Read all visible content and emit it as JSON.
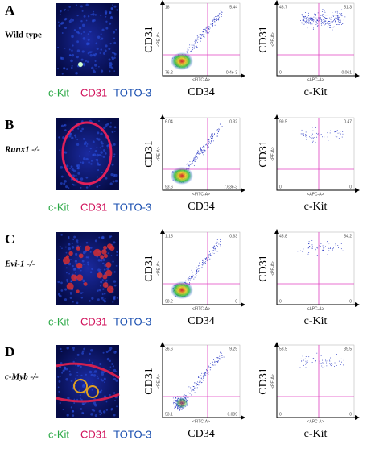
{
  "panels": [
    {
      "letter": "A",
      "genotype": "Wild type",
      "stains": [
        "c-Kit",
        "CD31",
        "TOTO-3"
      ],
      "plots": [
        {
          "y_label": "CD31",
          "x_label": "CD34",
          "y_channel": "<PE-A>",
          "x_channel": "<FITC-A>",
          "quadrants": [
            "18",
            "5.44",
            "76.2",
            "0.4e-3"
          ]
        },
        {
          "y_label": "CD31",
          "x_label": "c-Kit",
          "y_channel": "<PE-A>",
          "x_channel": "<APC-A>",
          "quadrants": [
            "48.7",
            "51.3",
            "0",
            "0.061"
          ]
        }
      ]
    },
    {
      "letter": "B",
      "genotype": "Runx1 -/-",
      "stains": [
        "c-Kit",
        "CD31",
        "TOTO-3"
      ],
      "plots": [
        {
          "y_label": "CD31",
          "x_label": "CD34",
          "y_channel": "<PE-A>",
          "x_channel": "<FITC-A>",
          "quadrants": [
            "6.04",
            "0.32",
            "93.6",
            "7.63e-3"
          ]
        },
        {
          "y_label": "CD31",
          "x_label": "c-Kit",
          "y_channel": "<PE-A>",
          "x_channel": "<APC-A>",
          "quadrants": [
            "99.5",
            "0.47",
            "0",
            "0"
          ]
        }
      ]
    },
    {
      "letter": "C",
      "genotype": "Evi-1 -/-",
      "stains": [
        "c-Kit",
        "CD31",
        "TOTO-3"
      ],
      "plots": [
        {
          "y_label": "CD31",
          "x_label": "CD34",
          "y_channel": "<PE-A>",
          "x_channel": "<FITC-A>",
          "quadrants": [
            "1.15",
            "0.63",
            "98.2",
            "0"
          ]
        },
        {
          "y_label": "CD31",
          "x_label": "c-Kit",
          "y_channel": "<PE-A>",
          "x_channel": "<APC-A>",
          "quadrants": [
            "45.8",
            "54.2",
            "0",
            "0"
          ]
        }
      ]
    },
    {
      "letter": "D",
      "genotype": "c-Myb -/-",
      "stains": [
        "c-Kit",
        "CD31",
        "TOTO-3"
      ],
      "plots": [
        {
          "y_label": "CD31",
          "x_label": "CD34",
          "y_channel": "<PE-A>",
          "x_channel": "<FITC-A>",
          "quadrants": [
            "36.6",
            "9.29",
            "53.1",
            "0.089"
          ]
        },
        {
          "y_label": "CD31",
          "x_label": "c-Kit",
          "y_channel": "<PE-A>",
          "x_channel": "<APC-A>",
          "quadrants": [
            "58.5",
            "39.5",
            "0",
            "0"
          ]
        }
      ]
    }
  ]
}
